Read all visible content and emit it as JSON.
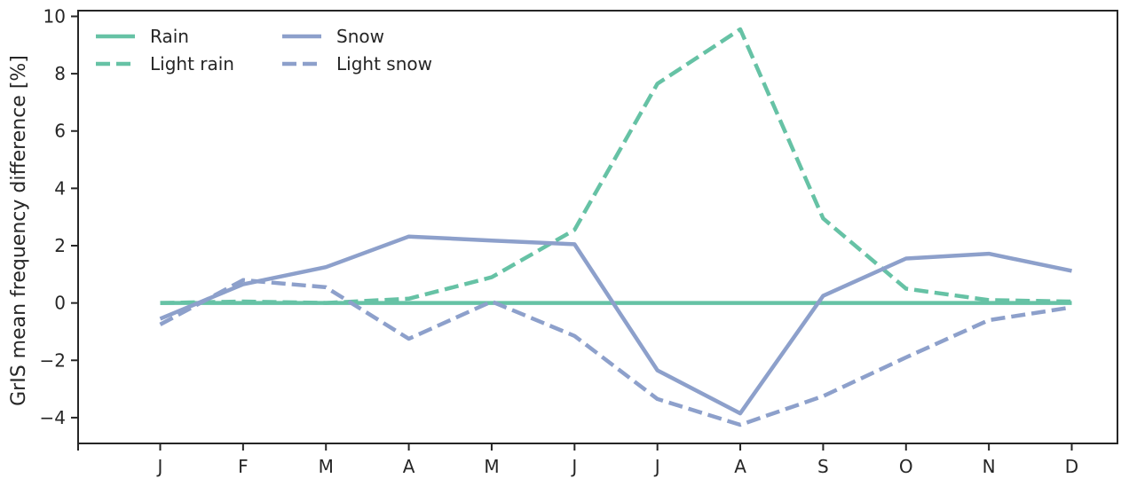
{
  "chart_data": {
    "type": "line",
    "title": "",
    "xlabel": "",
    "ylabel": "GrIS mean frequency difference [%]",
    "categories": [
      "J",
      "F",
      "M",
      "A",
      "M",
      "J",
      "J",
      "A",
      "S",
      "O",
      "N",
      "D"
    ],
    "ylim": [
      -4.9,
      10.2
    ],
    "yticks": [
      -4,
      -2,
      0,
      2,
      4,
      6,
      8,
      10
    ],
    "ytick_labels": [
      "−4",
      "−2",
      "0",
      "2",
      "4",
      "6",
      "8",
      "10"
    ],
    "grid": false,
    "legend_placement": "top-left",
    "series": [
      {
        "name": "Rain",
        "color": "#66c2a5",
        "dash": "solid",
        "values": [
          0.0,
          0.0,
          0.0,
          0.0,
          0.0,
          0.0,
          0.0,
          0.0,
          0.0,
          0.0,
          0.0,
          0.0
        ]
      },
      {
        "name": "Light rain",
        "color": "#66c2a5",
        "dash": "dashed",
        "values": [
          0.0,
          0.05,
          0.0,
          0.15,
          0.9,
          2.55,
          7.65,
          9.55,
          2.95,
          0.5,
          0.1,
          0.05
        ]
      },
      {
        "name": "Snow",
        "color": "#8da0cb",
        "dash": "solid",
        "values": [
          -0.55,
          0.65,
          1.25,
          2.32,
          2.18,
          2.05,
          -2.35,
          -3.85,
          0.25,
          1.55,
          1.72,
          1.12
        ]
      },
      {
        "name": "Light snow",
        "color": "#8da0cb",
        "dash": "dashed",
        "values": [
          -0.75,
          0.8,
          0.55,
          -1.25,
          0.05,
          -1.15,
          -3.35,
          -4.25,
          -3.25,
          -1.9,
          -0.6,
          -0.15
        ]
      }
    ]
  }
}
